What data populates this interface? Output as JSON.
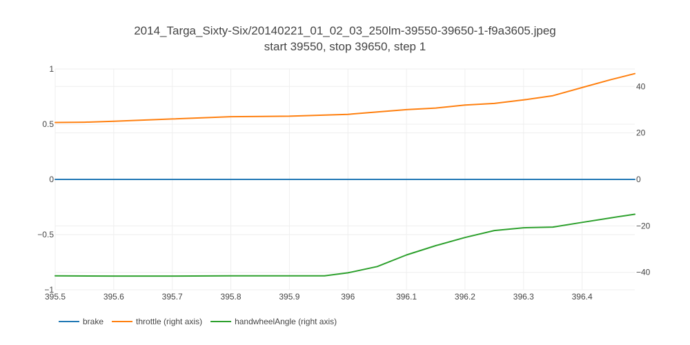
{
  "chart_data": {
    "type": "line",
    "title": "2014_Targa_Sixty-Six/20140221_01_02_03_250lm-39550-39650-1-f9a3605.jpeg",
    "subtitle": "start 39550, stop 39650, step 1",
    "xlim": [
      395.5,
      396.49
    ],
    "ylim_left": [
      -1,
      1
    ],
    "ylim_right": [
      -47.5,
      47.5
    ],
    "x_ticks": [
      395.5,
      395.6,
      395.7,
      395.8,
      395.9,
      396,
      396.1,
      396.2,
      396.3,
      396.4
    ],
    "x_tick_labels": [
      "395.5",
      "395.6",
      "395.7",
      "395.8",
      "395.9",
      "396",
      "396.1",
      "396.2",
      "396.3",
      "396.4"
    ],
    "y_left_ticks": [
      1,
      0.5,
      0,
      -0.5,
      -1
    ],
    "y_left_tick_labels": [
      "1",
      "0.5",
      "0",
      "−0.5",
      "−1"
    ],
    "y_right_ticks": [
      40,
      20,
      0,
      -20,
      -40
    ],
    "y_right_tick_labels": [
      "40",
      "20",
      "0",
      "−20",
      "−40"
    ],
    "grid": true,
    "legend_position": "bottom-left",
    "series": [
      {
        "name": "brake",
        "axis": "left",
        "color": "#1f77b4",
        "x": [
          395.5,
          396.49
        ],
        "y": [
          0,
          0
        ]
      },
      {
        "name": "throttle (right axis)",
        "axis": "right",
        "color": "#ff7f0e",
        "x": [
          395.5,
          395.55,
          395.6,
          395.7,
          395.8,
          395.9,
          396.0,
          396.05,
          396.1,
          396.15,
          396.2,
          396.25,
          396.3,
          396.35,
          396.4,
          396.45,
          396.49
        ],
        "y": [
          24.5,
          24.6,
          25.0,
          26.0,
          27.0,
          27.2,
          28.0,
          29.0,
          30.0,
          30.7,
          32.0,
          32.7,
          34.2,
          36.0,
          39.5,
          43.0,
          45.5
        ]
      },
      {
        "name": "handwheelAngle (right axis)",
        "axis": "right",
        "color": "#2ca02c",
        "x": [
          395.5,
          395.6,
          395.7,
          395.8,
          395.9,
          395.96,
          396.0,
          396.05,
          396.1,
          396.15,
          396.2,
          396.25,
          396.3,
          396.35,
          396.4,
          396.45,
          396.49
        ],
        "y": [
          -41.5,
          -41.6,
          -41.6,
          -41.5,
          -41.5,
          -41.5,
          -40.2,
          -37.5,
          -32.5,
          -28.5,
          -25.0,
          -22.0,
          -20.8,
          -20.5,
          -18.5,
          -16.5,
          -15.0
        ]
      }
    ]
  }
}
